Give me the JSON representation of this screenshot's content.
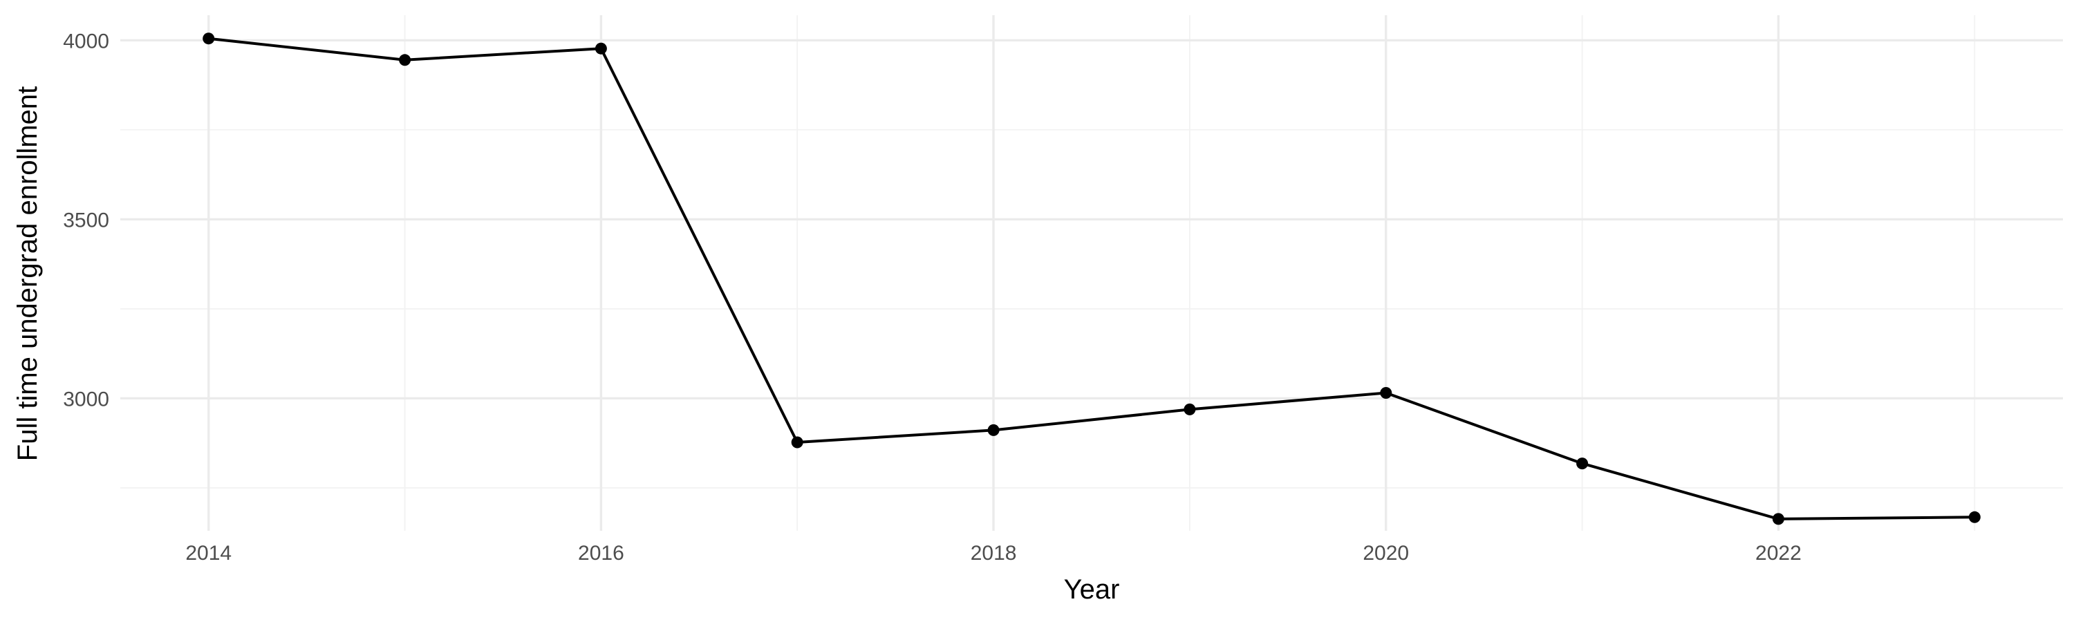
{
  "chart_data": {
    "type": "line",
    "title": "",
    "xlabel": "Year",
    "ylabel": "Full time undergrad enrollment",
    "x": [
      2014,
      2015,
      2016,
      2017,
      2018,
      2019,
      2020,
      2021,
      2022,
      2023
    ],
    "series": [
      {
        "values": [
          4005,
          3945,
          3977,
          2877,
          2911,
          2969,
          3015,
          2818,
          2663,
          2668
        ]
      }
    ],
    "xlim": [
      2013.55,
      2023.45
    ],
    "ylim": [
      2630,
      4070
    ],
    "x_ticks": [
      2014,
      2016,
      2018,
      2020,
      2022
    ],
    "x_minor_ticks": [
      2015,
      2017,
      2019,
      2021,
      2023
    ],
    "y_ticks": [
      3000,
      3500,
      4000
    ],
    "y_minor_ticks": [
      2750,
      3250,
      3750
    ],
    "grid": true,
    "legend": "none",
    "colors": {
      "line": "#000000",
      "grid": "#ebebeb",
      "tick_text": "#4d4d4d"
    }
  }
}
